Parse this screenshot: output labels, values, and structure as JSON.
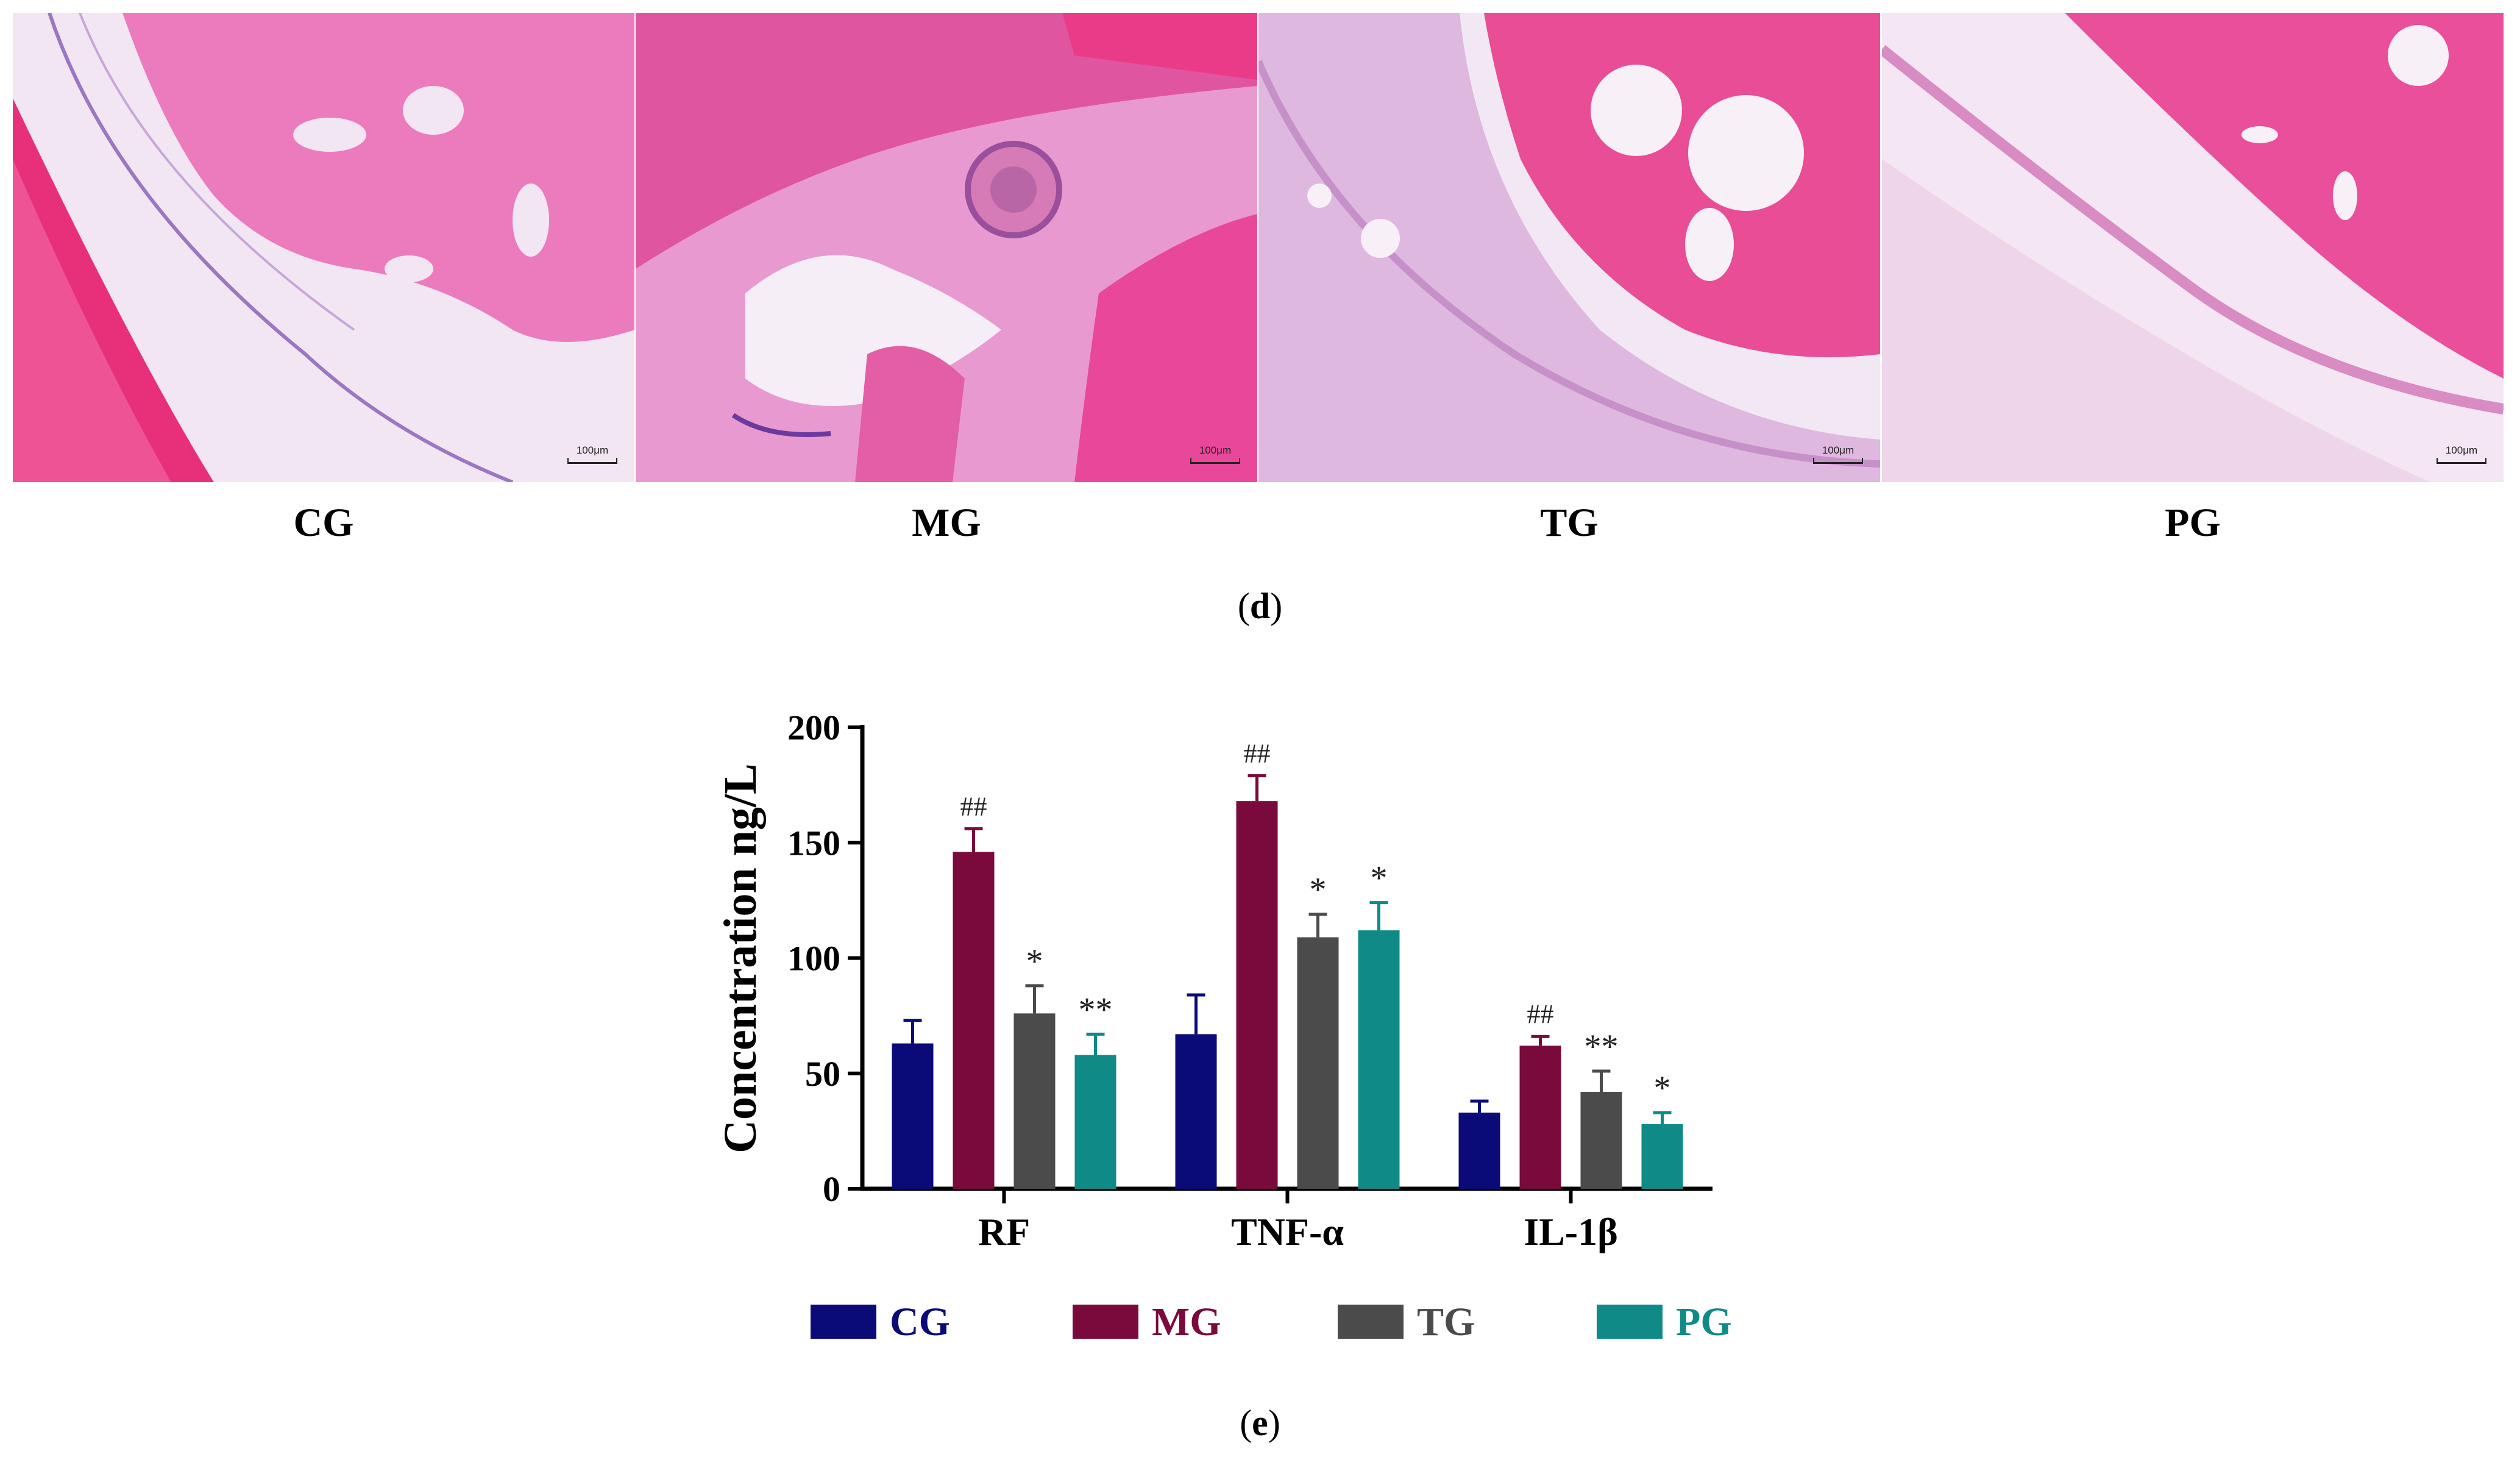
{
  "panels": [
    {
      "label": "CG",
      "scale_label": "100μm"
    },
    {
      "label": "MG",
      "scale_label": "100μm"
    },
    {
      "label": "TG",
      "scale_label": "100μm"
    },
    {
      "label": "PG",
      "scale_label": "100μm"
    }
  ],
  "captions": {
    "d": {
      "open": "(",
      "letter": "d",
      "close": ")"
    },
    "e": {
      "open": "(",
      "letter": "e",
      "close": ")"
    }
  },
  "colors": {
    "CG": "#0a0a78",
    "MG": "#7a0a3c",
    "TG": "#4b4b4b",
    "PG": "#0f8a86"
  },
  "chart_data": {
    "type": "bar",
    "categories": [
      "RF",
      "TNF-α",
      "IL-1β"
    ],
    "ylabel": "Concentration ng/L",
    "xlabel": "",
    "ylim": [
      0,
      200
    ],
    "yticks": [
      0,
      50,
      100,
      150,
      200
    ],
    "legend_position": "bottom",
    "series": [
      {
        "name": "CG",
        "values": [
          63,
          67,
          33
        ],
        "errors": [
          10,
          17,
          5
        ],
        "marks": [
          "",
          "",
          ""
        ]
      },
      {
        "name": "MG",
        "values": [
          146,
          168,
          62
        ],
        "errors": [
          10,
          11,
          4
        ],
        "marks": [
          "##",
          "##",
          "##"
        ]
      },
      {
        "name": "TG",
        "values": [
          76,
          109,
          42
        ],
        "errors": [
          12,
          10,
          9
        ],
        "marks": [
          "*",
          "*",
          "**"
        ]
      },
      {
        "name": "PG",
        "values": [
          58,
          112,
          28
        ],
        "errors": [
          9,
          12,
          5
        ],
        "marks": [
          "**",
          "*",
          "*"
        ]
      }
    ]
  }
}
